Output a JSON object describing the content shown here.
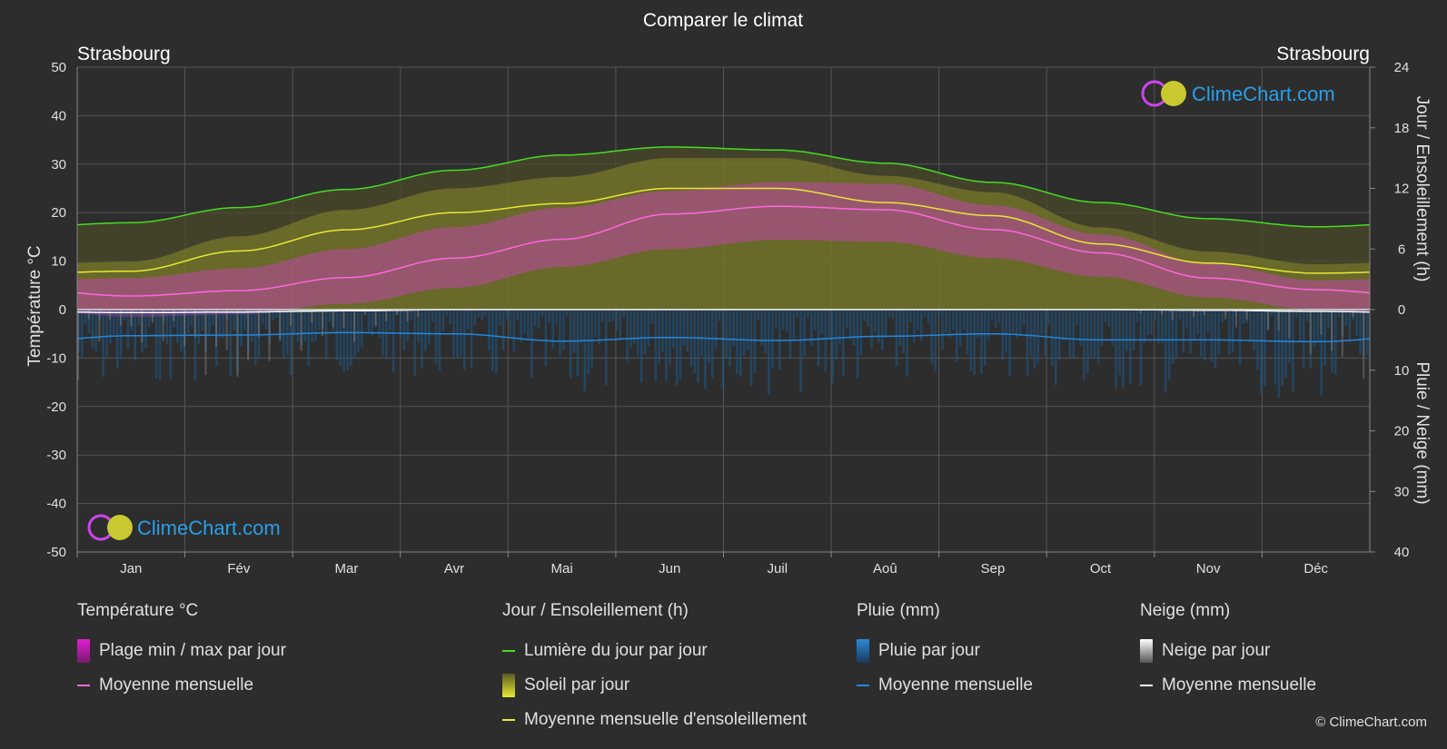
{
  "chart_data": {
    "type": "area",
    "title": "Comparer le climat",
    "location_left": "Strasbourg",
    "location_right": "Strasbourg",
    "watermark": "ClimeChart.com",
    "copyright": "© ClimeChart.com",
    "left_axis": {
      "label": "Température °C",
      "min": -50,
      "max": 50,
      "ticks": [
        50,
        40,
        30,
        20,
        10,
        0,
        -10,
        -20,
        -30,
        -40,
        -50
      ]
    },
    "right_axis_top": {
      "label": "Jour / Ensoleillement (h)",
      "min": 0,
      "max": 24,
      "ticks": [
        24,
        18,
        12,
        6,
        0
      ]
    },
    "right_axis_bottom": {
      "label": "Pluie / Neige (mm)",
      "min": 0,
      "max": 40,
      "ticks": [
        10,
        20,
        30,
        40
      ]
    },
    "months": [
      "Jan",
      "Fév",
      "Mar",
      "Avr",
      "Mai",
      "Jun",
      "Juil",
      "Aoû",
      "Sep",
      "Oct",
      "Nov",
      "Déc"
    ],
    "grid": true,
    "series": [
      {
        "name": "Lumière du jour par jour",
        "unit": "h",
        "values": [
          8.6,
          10.1,
          11.9,
          13.8,
          15.3,
          16.1,
          15.8,
          14.5,
          12.6,
          10.6,
          9.0,
          8.2
        ],
        "color": "#44dd22"
      },
      {
        "name": "Moyenne mensuelle d'ensoleillement",
        "unit": "h",
        "values": [
          3.8,
          5.8,
          7.9,
          9.6,
          10.5,
          12.0,
          12.0,
          10.6,
          9.3,
          6.5,
          4.6,
          3.6
        ],
        "color": "#e8e832"
      },
      {
        "name": "Moyenne mensuelle",
        "unit": "°C",
        "values": [
          2.8,
          3.9,
          6.6,
          10.6,
          14.5,
          19.7,
          21.3,
          20.6,
          16.5,
          11.7,
          6.5,
          4.1
        ],
        "color": "#ff66dd"
      },
      {
        "name": "Moyenne mensuelle (pluie)",
        "unit": "mm",
        "values": [
          4.3,
          4.2,
          3.8,
          4.0,
          5.2,
          4.6,
          5.1,
          4.4,
          4.0,
          5.0,
          5.0,
          5.3
        ],
        "color": "#2288dd"
      },
      {
        "name": "Moyenne mensuelle (neige)",
        "unit": "mm",
        "values": [
          0.5,
          0.4,
          0.2,
          0,
          0,
          0,
          0,
          0,
          0,
          0,
          0.1,
          0.3
        ],
        "color": "#ffffff"
      }
    ],
    "temp_range": {
      "min": [
        -1.5,
        -1.0,
        1.2,
        4.5,
        8.8,
        12.5,
        14.4,
        14.0,
        10.6,
        6.8,
        2.5,
        0.0
      ],
      "max": [
        6.5,
        8.5,
        12.5,
        17.0,
        21.0,
        24.5,
        26.3,
        26.0,
        21.5,
        15.5,
        9.5,
        6.0
      ]
    }
  },
  "legend": {
    "groups": [
      {
        "header": "Température °C",
        "items": [
          {
            "label": "Plage min / max par jour",
            "kind": "box",
            "color": "#e020d0"
          },
          {
            "label": "Moyenne mensuelle",
            "kind": "line",
            "color": "#ff66dd"
          }
        ]
      },
      {
        "header": "Jour / Ensoleillement (h)",
        "items": [
          {
            "label": "Lumière du jour par jour",
            "kind": "line",
            "color": "#44dd22"
          },
          {
            "label": "Soleil par jour",
            "kind": "box",
            "color": "#d8d830"
          },
          {
            "label": "Moyenne mensuelle d'ensoleillement",
            "kind": "line",
            "color": "#e8e832"
          }
        ]
      },
      {
        "header": "Pluie (mm)",
        "items": [
          {
            "label": "Pluie par jour",
            "kind": "box",
            "color": "#2a8ad8"
          },
          {
            "label": "Moyenne mensuelle",
            "kind": "line",
            "color": "#2288dd"
          }
        ]
      },
      {
        "header": "Neige (mm)",
        "items": [
          {
            "label": "Neige par jour",
            "kind": "box",
            "color": "#dddddd"
          },
          {
            "label": "Moyenne mensuelle",
            "kind": "line",
            "color": "#ffffff"
          }
        ]
      }
    ]
  }
}
